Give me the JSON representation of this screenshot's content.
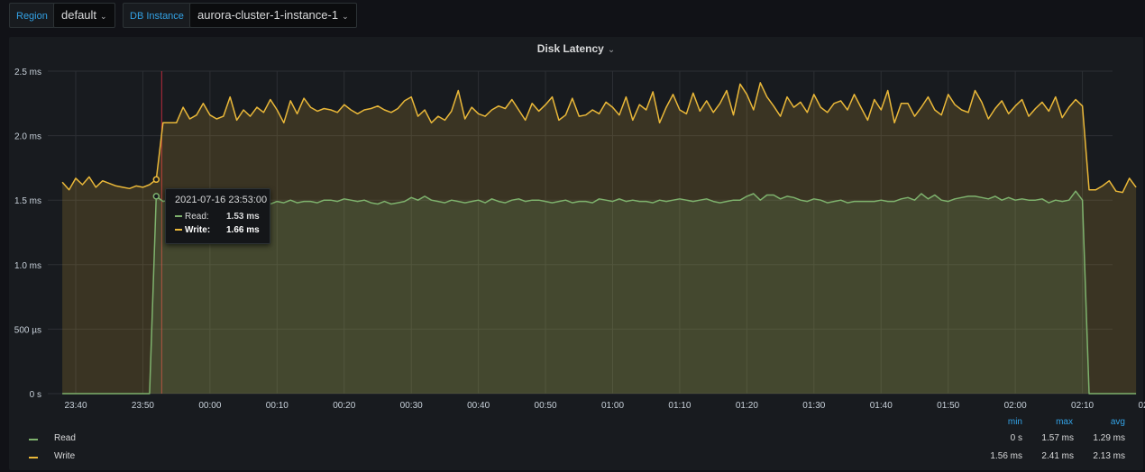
{
  "variables": {
    "region_label": "Region",
    "region_value": "default",
    "instance_label": "DB Instance",
    "instance_value": "aurora-cluster-1-instance-1"
  },
  "panel": {
    "title": "Disk Latency"
  },
  "tooltip": {
    "time": "2021-07-16 23:53:00",
    "read_label": "Read:",
    "read_value": "1.53 ms",
    "write_label": "Write:",
    "write_value": "1.66 ms"
  },
  "legend": {
    "headers": {
      "min": "min",
      "max": "max",
      "avg": "avg"
    },
    "rows": [
      {
        "name": "Read",
        "min": "0 s",
        "max": "1.57 ms",
        "avg": "1.29 ms"
      },
      {
        "name": "Write",
        "min": "1.56 ms",
        "max": "2.41 ms",
        "avg": "2.13 ms"
      }
    ]
  },
  "colors": {
    "read": "#7eb26d",
    "write": "#eab839",
    "annotation": "#e02f44"
  },
  "chart_data": {
    "type": "area",
    "title": "Disk Latency",
    "ylim": [
      0,
      2.5
    ],
    "y_unit": "ms",
    "y_ticks": [
      0,
      0.5,
      1.0,
      1.5,
      2.0,
      2.5
    ],
    "y_tick_labels": [
      "0 s",
      "500 µs",
      "1.0 ms",
      "1.5 ms",
      "2.0 ms",
      "2.5 ms"
    ],
    "x_start_label": "23:38",
    "x_interval_minutes": 1,
    "x_ticks": [
      "23:40",
      "23:50",
      "00:00",
      "00:10",
      "00:20",
      "00:30",
      "00:40",
      "00:50",
      "01:00",
      "01:10",
      "01:20",
      "01:30",
      "01:40",
      "01:50",
      "02:00",
      "02:10",
      "02:20"
    ],
    "annotation_time": "23:52",
    "series": [
      {
        "name": "Read",
        "values": [
          0,
          0,
          0,
          0,
          0,
          0,
          0,
          0,
          0,
          0,
          0,
          0,
          0,
          0,
          1.53,
          1.49,
          1.5,
          1.5,
          1.48,
          1.49,
          1.49,
          1.46,
          1.48,
          1.47,
          1.48,
          1.47,
          1.49,
          1.46,
          1.48,
          1.47,
          1.48,
          1.47,
          1.49,
          1.48,
          1.5,
          1.48,
          1.49,
          1.49,
          1.48,
          1.5,
          1.5,
          1.49,
          1.51,
          1.5,
          1.49,
          1.5,
          1.48,
          1.47,
          1.49,
          1.47,
          1.48,
          1.49,
          1.52,
          1.5,
          1.53,
          1.5,
          1.49,
          1.48,
          1.5,
          1.49,
          1.48,
          1.49,
          1.5,
          1.48,
          1.51,
          1.49,
          1.48,
          1.5,
          1.51,
          1.49,
          1.5,
          1.5,
          1.49,
          1.48,
          1.49,
          1.5,
          1.48,
          1.49,
          1.49,
          1.48,
          1.51,
          1.5,
          1.49,
          1.51,
          1.49,
          1.5,
          1.49,
          1.49,
          1.48,
          1.5,
          1.49,
          1.5,
          1.51,
          1.5,
          1.49,
          1.5,
          1.51,
          1.49,
          1.48,
          1.49,
          1.5,
          1.5,
          1.53,
          1.55,
          1.5,
          1.54,
          1.54,
          1.51,
          1.53,
          1.52,
          1.5,
          1.49,
          1.51,
          1.5,
          1.48,
          1.49,
          1.5,
          1.48,
          1.49,
          1.49,
          1.49,
          1.49,
          1.5,
          1.49,
          1.49,
          1.51,
          1.52,
          1.5,
          1.55,
          1.51,
          1.54,
          1.5,
          1.49,
          1.51,
          1.52,
          1.53,
          1.53,
          1.52,
          1.51,
          1.53,
          1.5,
          1.52,
          1.5,
          1.51,
          1.5,
          1.5,
          1.51,
          1.48,
          1.5,
          1.49,
          1.5,
          1.57,
          1.5,
          0,
          0,
          0,
          0,
          0,
          0,
          0,
          0
        ]
      },
      {
        "name": "Write",
        "values": [
          1.64,
          1.58,
          1.67,
          1.62,
          1.68,
          1.6,
          1.65,
          1.63,
          1.61,
          1.6,
          1.59,
          1.61,
          1.6,
          1.62,
          1.66,
          2.1,
          2.1,
          2.1,
          2.22,
          2.13,
          2.16,
          2.25,
          2.16,
          2.13,
          2.15,
          2.3,
          2.12,
          2.2,
          2.15,
          2.22,
          2.18,
          2.28,
          2.2,
          2.1,
          2.27,
          2.17,
          2.29,
          2.22,
          2.19,
          2.21,
          2.2,
          2.18,
          2.24,
          2.2,
          2.17,
          2.2,
          2.21,
          2.23,
          2.2,
          2.18,
          2.21,
          2.27,
          2.3,
          2.15,
          2.2,
          2.1,
          2.15,
          2.12,
          2.19,
          2.35,
          2.13,
          2.22,
          2.17,
          2.15,
          2.2,
          2.23,
          2.21,
          2.28,
          2.2,
          2.12,
          2.25,
          2.19,
          2.24,
          2.3,
          2.12,
          2.16,
          2.29,
          2.15,
          2.16,
          2.2,
          2.17,
          2.26,
          2.22,
          2.16,
          2.3,
          2.12,
          2.24,
          2.2,
          2.34,
          2.1,
          2.22,
          2.32,
          2.2,
          2.17,
          2.33,
          2.19,
          2.27,
          2.18,
          2.25,
          2.35,
          2.16,
          2.4,
          2.32,
          2.2,
          2.41,
          2.3,
          2.23,
          2.15,
          2.3,
          2.22,
          2.26,
          2.18,
          2.32,
          2.22,
          2.18,
          2.25,
          2.27,
          2.2,
          2.32,
          2.22,
          2.12,
          2.28,
          2.2,
          2.35,
          2.1,
          2.25,
          2.25,
          2.15,
          2.22,
          2.3,
          2.2,
          2.16,
          2.32,
          2.24,
          2.2,
          2.18,
          2.35,
          2.26,
          2.13,
          2.21,
          2.27,
          2.17,
          2.23,
          2.28,
          2.15,
          2.21,
          2.26,
          2.19,
          2.3,
          2.14,
          2.22,
          2.28,
          2.23,
          1.58,
          1.58,
          1.61,
          1.65,
          1.57,
          1.56,
          1.67,
          1.6
        ]
      }
    ]
  }
}
